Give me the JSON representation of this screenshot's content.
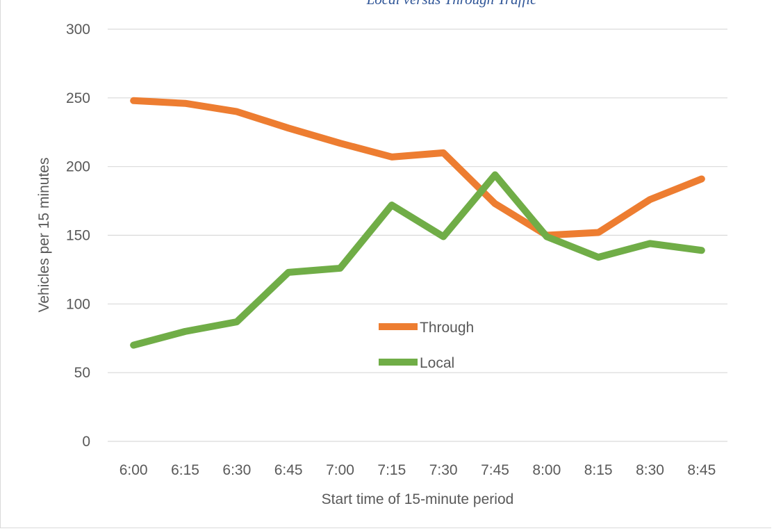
{
  "chart_data": {
    "type": "line",
    "title": "Local versus Through Traffic",
    "xlabel": "Start time of 15-minute period",
    "ylabel": "Vehicles per 15 minutes",
    "categories": [
      "6:00",
      "6:15",
      "6:30",
      "6:45",
      "7:00",
      "7:15",
      "7:30",
      "7:45",
      "8:00",
      "8:15",
      "8:30",
      "8:45"
    ],
    "ylim": [
      0,
      300
    ],
    "yticks": [
      "0",
      "50",
      "100",
      "150",
      "200",
      "250",
      "300"
    ],
    "grid": true,
    "legend_position": "center",
    "series": [
      {
        "name": "Through",
        "color": "#ed7d31",
        "values": [
          248,
          246,
          240,
          228,
          217,
          207,
          210,
          173,
          150,
          152,
          176,
          191
        ]
      },
      {
        "name": "Local",
        "color": "#70ad47",
        "values": [
          70,
          80,
          87,
          123,
          126,
          172,
          149,
          194,
          149,
          134,
          144,
          139
        ]
      }
    ]
  }
}
